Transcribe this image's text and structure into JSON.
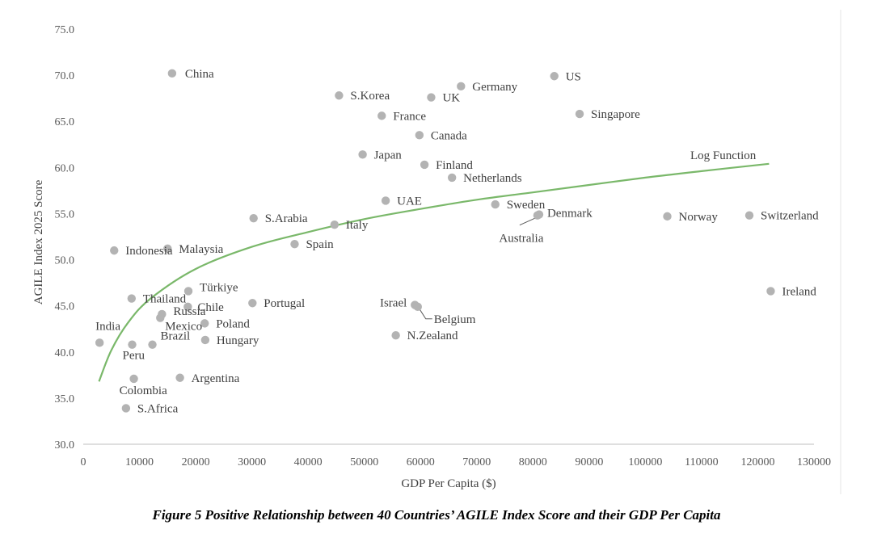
{
  "chart_data": {
    "type": "scatter",
    "xlabel": "GDP Per Capita ($)",
    "ylabel": "AGILE Index 2025 Score",
    "xlim": [
      0,
      130000
    ],
    "ylim": [
      30,
      75
    ],
    "x_ticks": [
      "0",
      "10000",
      "20000",
      "30000",
      "40000",
      "50000",
      "60000",
      "70000",
      "80000",
      "90000",
      "100000",
      "110000",
      "120000",
      "130000"
    ],
    "y_ticks": [
      "30.0",
      "35.0",
      "40.0",
      "45.0",
      "50.0",
      "55.0",
      "60.0",
      "65.0",
      "70.0",
      "75.0"
    ],
    "grid": false,
    "point_color": "#b3b3b3",
    "trend_color": "#7ab86a",
    "trend_label": "Log Function",
    "trend_points": [
      [
        2800,
        36.8
      ],
      [
        5000,
        40.2
      ],
      [
        8000,
        43.2
      ],
      [
        12000,
        45.8
      ],
      [
        20000,
        49.0
      ],
      [
        30000,
        51.4
      ],
      [
        40000,
        53.0
      ],
      [
        50000,
        54.4
      ],
      [
        60000,
        55.5
      ],
      [
        70000,
        56.5
      ],
      [
        80000,
        57.3
      ],
      [
        90000,
        58.1
      ],
      [
        100000,
        58.9
      ],
      [
        110000,
        59.6
      ],
      [
        122000,
        60.4
      ]
    ],
    "points": [
      {
        "label": "China",
        "x": 15800,
        "y": 70.2
      },
      {
        "label": "S.Korea",
        "x": 45500,
        "y": 67.8
      },
      {
        "label": "UK",
        "x": 61900,
        "y": 67.6
      },
      {
        "label": "Germany",
        "x": 67200,
        "y": 68.8
      },
      {
        "label": "US",
        "x": 83800,
        "y": 69.9
      },
      {
        "label": "France",
        "x": 53100,
        "y": 65.6
      },
      {
        "label": "Singapore",
        "x": 88300,
        "y": 65.8
      },
      {
        "label": "Canada",
        "x": 59800,
        "y": 63.5
      },
      {
        "label": "Japan",
        "x": 49700,
        "y": 61.4
      },
      {
        "label": "Finland",
        "x": 60700,
        "y": 60.3
      },
      {
        "label": "Netherlands",
        "x": 65600,
        "y": 58.9
      },
      {
        "label": "UAE",
        "x": 53800,
        "y": 56.4
      },
      {
        "label": "Sweden",
        "x": 73300,
        "y": 56.0
      },
      {
        "label": "Denmark",
        "x": 81100,
        "y": 54.9
      },
      {
        "label": "Australia",
        "x": 80800,
        "y": 54.8
      },
      {
        "label": "Norway",
        "x": 103900,
        "y": 54.7
      },
      {
        "label": "Switzerland",
        "x": 118500,
        "y": 54.8
      },
      {
        "label": "S.Arabia",
        "x": 30300,
        "y": 54.5
      },
      {
        "label": "Italy",
        "x": 44700,
        "y": 53.8
      },
      {
        "label": "Spain",
        "x": 37600,
        "y": 51.7
      },
      {
        "label": "Indonesia",
        "x": 5500,
        "y": 51.0
      },
      {
        "label": "Malaysia",
        "x": 15000,
        "y": 51.2
      },
      {
        "label": "Türkiye",
        "x": 18700,
        "y": 46.6
      },
      {
        "label": "Thailand",
        "x": 8600,
        "y": 45.8
      },
      {
        "label": "Portugal",
        "x": 30100,
        "y": 45.3
      },
      {
        "label": "Chile",
        "x": 18600,
        "y": 44.9
      },
      {
        "label": "Russia",
        "x": 14000,
        "y": 44.1
      },
      {
        "label": "Mexico",
        "x": 13700,
        "y": 43.7
      },
      {
        "label": "Poland",
        "x": 21600,
        "y": 43.1
      },
      {
        "label": "Israel",
        "x": 59000,
        "y": 45.1
      },
      {
        "label": "Belgium",
        "x": 59500,
        "y": 44.9
      },
      {
        "label": "Ireland",
        "x": 122300,
        "y": 46.6
      },
      {
        "label": "India",
        "x": 2900,
        "y": 41.0
      },
      {
        "label": "Brazil",
        "x": 12300,
        "y": 40.8
      },
      {
        "label": "Peru",
        "x": 8700,
        "y": 40.8
      },
      {
        "label": "Hungary",
        "x": 21700,
        "y": 41.3
      },
      {
        "label": "N.Zealand",
        "x": 55600,
        "y": 41.8
      },
      {
        "label": "Argentina",
        "x": 17200,
        "y": 37.2
      },
      {
        "label": "Colombia",
        "x": 9000,
        "y": 37.1
      },
      {
        "label": "S.Africa",
        "x": 7600,
        "y": 33.9
      }
    ]
  },
  "caption": "Figure 5 Positive Relationship between 40 Countries’ AGILE Index Score and their GDP Per Capita"
}
